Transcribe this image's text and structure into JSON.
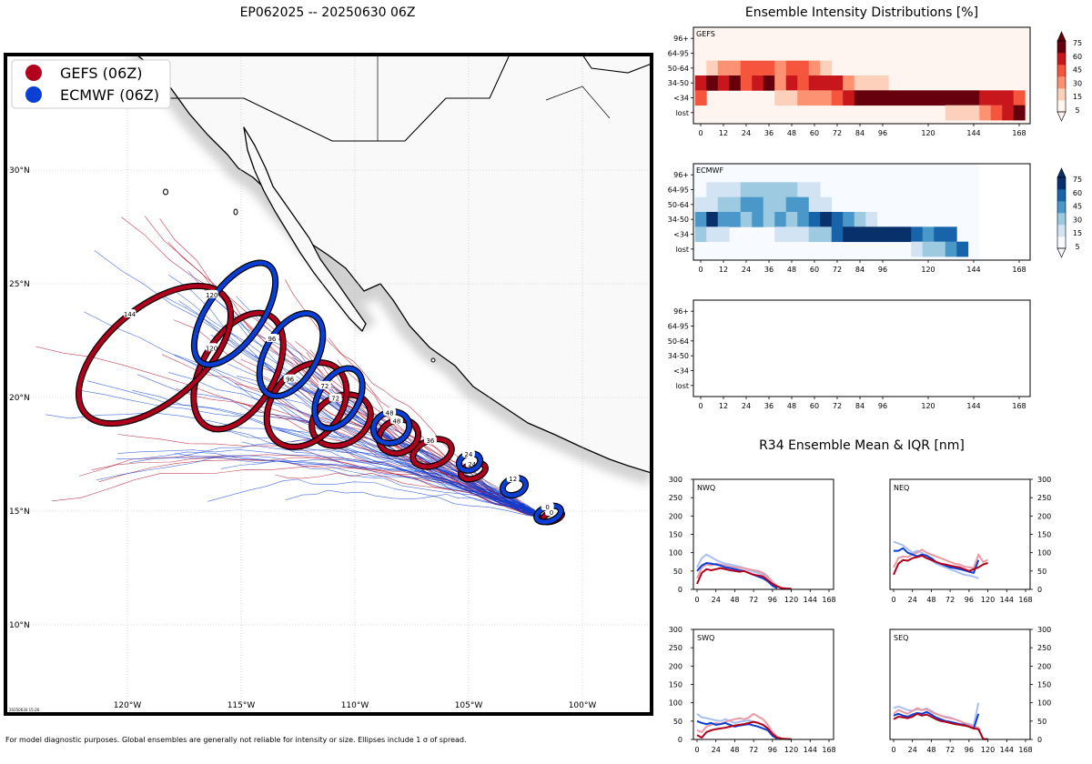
{
  "header": {
    "map_title": "EP062025 -- 20250630 06Z",
    "intensity_title": "Ensemble Intensity Distributions [%]",
    "r34_title": "R34 Ensemble Mean & IQR [nm]",
    "footer": "For model diagnostic purposes. Global ensembles are generally not reliable for intensity or size. Ellipses include 1 σ of spread.",
    "stamp": "20250630 15:26"
  },
  "legend": {
    "items": [
      {
        "label": "GEFS (06Z)",
        "color": "#b0001e"
      },
      {
        "label": "ECMWF (06Z)",
        "color": "#0a3fd6"
      }
    ]
  },
  "map": {
    "lon_labels": [
      "120°W",
      "115°W",
      "110°W",
      "105°W",
      "100°W"
    ],
    "lat_labels": [
      "30°N",
      "25°N",
      "20°N",
      "15°N",
      "10°N"
    ],
    "gefs_color": "#b0001e",
    "ecmwf_color": "#0a3fd6"
  },
  "chart_data": [
    {
      "type": "heatmap",
      "panel": "GEFS",
      "ylabels": [
        "96+",
        "64-95",
        "50-64",
        "34-50",
        "<34",
        "lost"
      ],
      "xticks": [
        "0",
        "12",
        "24",
        "36",
        "48",
        "60",
        "72",
        "84",
        "96",
        "120",
        "144",
        "168"
      ],
      "colorbar": {
        "ticks": [
          "75",
          "60",
          "45",
          "30",
          "15",
          "5"
        ],
        "colors": [
          "#fff5f0",
          "#fdd0bc",
          "#fc9272",
          "#f5553d",
          "#c8171c",
          "#67000d"
        ]
      },
      "rows": [
        [
          0,
          0,
          0,
          0,
          0,
          0,
          0,
          0,
          0,
          0,
          0,
          0,
          0,
          0,
          0,
          0,
          0,
          0,
          0,
          0,
          0,
          0,
          0,
          0,
          0,
          0,
          0,
          0,
          0
        ],
        [
          0,
          0,
          0,
          0,
          0,
          0,
          0,
          0,
          0,
          0,
          0,
          0,
          0,
          0,
          0,
          0,
          0,
          0,
          0,
          0,
          0,
          0,
          0,
          0,
          0,
          0,
          0,
          0,
          0
        ],
        [
          0,
          1,
          2,
          2,
          3,
          3,
          3,
          2,
          3,
          3,
          2,
          1,
          0,
          0,
          0,
          0,
          0,
          0,
          0,
          0,
          0,
          0,
          0,
          0,
          0,
          0,
          0,
          0,
          0
        ],
        [
          4,
          5,
          4,
          5,
          3,
          4,
          5,
          2,
          4,
          3,
          4,
          4,
          4,
          2,
          1,
          1,
          1,
          0,
          0,
          0,
          0,
          0,
          0,
          0,
          0,
          0,
          0,
          0,
          0
        ],
        [
          3,
          0,
          0,
          0,
          0,
          0,
          0,
          1,
          1,
          2,
          2,
          2,
          3,
          4,
          5,
          5,
          5,
          5,
          5,
          5,
          5,
          5,
          5,
          5,
          5,
          4,
          4,
          4,
          3
        ],
        [
          0,
          0,
          0,
          0,
          0,
          0,
          0,
          0,
          0,
          0,
          0,
          0,
          0,
          0,
          0,
          0,
          0,
          0,
          0,
          0,
          0,
          0,
          1,
          1,
          1,
          2,
          3,
          4,
          5
        ]
      ]
    },
    {
      "type": "heatmap",
      "panel": "ECMWF",
      "ylabels": [
        "96+",
        "64-95",
        "50-64",
        "34-50",
        "<34",
        "lost"
      ],
      "xticks": [
        "0",
        "12",
        "24",
        "36",
        "48",
        "60",
        "72",
        "84",
        "96",
        "120",
        "144",
        "168"
      ],
      "colorbar": {
        "ticks": [
          "75",
          "60",
          "45",
          "30",
          "15",
          "5"
        ],
        "colors": [
          "#f7fbff",
          "#d2e3f3",
          "#9ecae1",
          "#4a98c9",
          "#1764ab",
          "#08306b"
        ]
      },
      "rows": [
        [
          0,
          0,
          0,
          0,
          0,
          0,
          0,
          0,
          0,
          0,
          0,
          0,
          0,
          0,
          0,
          0,
          0,
          0,
          0,
          0,
          0,
          0,
          0,
          0,
          0
        ],
        [
          0,
          1,
          1,
          1,
          2,
          2,
          2,
          2,
          2,
          1,
          1,
          0,
          0,
          0,
          0,
          0,
          0,
          0,
          0,
          0,
          0,
          0,
          0,
          0,
          0
        ],
        [
          1,
          1,
          2,
          2,
          3,
          3,
          2,
          2,
          3,
          3,
          1,
          1,
          0,
          0,
          0,
          0,
          0,
          0,
          0,
          0,
          0,
          0,
          0,
          0,
          0
        ],
        [
          3,
          5,
          3,
          3,
          2,
          3,
          2,
          3,
          2,
          3,
          4,
          5,
          4,
          3,
          2,
          1,
          0,
          0,
          0,
          0,
          0,
          0,
          0,
          0,
          0
        ],
        [
          2,
          1,
          1,
          0,
          0,
          0,
          0,
          1,
          1,
          1,
          2,
          2,
          4,
          5,
          5,
          5,
          5,
          5,
          5,
          4,
          3,
          4,
          4,
          0,
          0
        ],
        [
          0,
          0,
          0,
          0,
          0,
          0,
          0,
          0,
          0,
          0,
          0,
          0,
          0,
          0,
          0,
          0,
          0,
          0,
          0,
          1,
          2,
          2,
          3,
          4,
          0
        ]
      ]
    },
    {
      "type": "heatmap",
      "panel": "",
      "ylabels": [
        "96+",
        "64-95",
        "50-64",
        "34-50",
        "<34",
        "lost"
      ],
      "xticks": [
        "0",
        "12",
        "24",
        "36",
        "48",
        "60",
        "72",
        "84",
        "96",
        "120",
        "144",
        "168"
      ],
      "rows": []
    },
    {
      "type": "line",
      "panel": "NWQ",
      "x": [
        0,
        6,
        12,
        18,
        24,
        30,
        36,
        42,
        48,
        54,
        60,
        66,
        72,
        78,
        84,
        90,
        96,
        102,
        108,
        114,
        120
      ],
      "xticks": [
        "0",
        "24",
        "48",
        "72",
        "96",
        "120",
        "144",
        "168"
      ],
      "yticks": [
        "0",
        "50",
        "100",
        "150",
        "200",
        "250",
        "300"
      ],
      "ylim": [
        0,
        300
      ],
      "series": [
        {
          "color": "#b0001e",
          "values": [
            15,
            45,
            55,
            52,
            55,
            58,
            55,
            52,
            50,
            48,
            50,
            45,
            40,
            38,
            35,
            25,
            15,
            8,
            3,
            2,
            2
          ]
        },
        {
          "color": "#0a3fd6",
          "values": [
            50,
            65,
            72,
            70,
            68,
            65,
            60,
            58,
            55,
            52,
            50,
            45,
            40,
            35,
            30,
            22,
            10,
            3,
            null,
            null,
            null
          ]
        },
        {
          "color": "#ea9aa4",
          "values": [
            30,
            60,
            68,
            65,
            70,
            68,
            65,
            62,
            60,
            58,
            58,
            55,
            52,
            50,
            45,
            35,
            20,
            10,
            5,
            3,
            2
          ]
        },
        {
          "color": "#a9bff3",
          "values": [
            60,
            85,
            95,
            88,
            80,
            75,
            70,
            68,
            65,
            62,
            58,
            52,
            48,
            45,
            40,
            30,
            18,
            8,
            null,
            null,
            null
          ]
        }
      ]
    },
    {
      "type": "line",
      "panel": "NEQ",
      "x": [
        0,
        6,
        12,
        18,
        24,
        30,
        36,
        42,
        48,
        54,
        60,
        66,
        72,
        78,
        84,
        90,
        96,
        102,
        108,
        114,
        120
      ],
      "xticks": [
        "0",
        "24",
        "48",
        "72",
        "96",
        "120",
        "144",
        "168"
      ],
      "yticks": [
        "0",
        "50",
        "100",
        "150",
        "200",
        "250",
        "300"
      ],
      "ylim": [
        0,
        300
      ],
      "series": [
        {
          "color": "#b0001e",
          "values": [
            40,
            70,
            80,
            78,
            85,
            88,
            92,
            85,
            80,
            75,
            70,
            68,
            65,
            62,
            60,
            55,
            50,
            55,
            60,
            68,
            72
          ]
        },
        {
          "color": "#0a3fd6",
          "values": [
            105,
            105,
            112,
            100,
            95,
            90,
            95,
            92,
            85,
            75,
            70,
            65,
            60,
            58,
            55,
            52,
            48,
            45,
            80,
            null,
            null
          ]
        },
        {
          "color": "#ea9aa4",
          "values": [
            60,
            85,
            90,
            88,
            95,
            100,
            108,
            100,
            95,
            90,
            85,
            80,
            75,
            70,
            68,
            62,
            60,
            58,
            95,
            75,
            80
          ]
        },
        {
          "color": "#a9bff3",
          "values": [
            130,
            125,
            120,
            110,
            100,
            105,
            100,
            90,
            80,
            70,
            65,
            60,
            55,
            50,
            45,
            40,
            38,
            35,
            30,
            null,
            null
          ]
        }
      ]
    },
    {
      "type": "line",
      "panel": "SWQ",
      "x": [
        0,
        6,
        12,
        18,
        24,
        30,
        36,
        42,
        48,
        54,
        60,
        66,
        72,
        78,
        84,
        90,
        96,
        102,
        108,
        114,
        120
      ],
      "xticks": [
        "0",
        "24",
        "48",
        "72",
        "96",
        "120",
        "144",
        "168"
      ],
      "yticks": [
        "0",
        "50",
        "100",
        "150",
        "200",
        "250",
        "300"
      ],
      "ylim": [
        0,
        300
      ],
      "series": [
        {
          "color": "#b0001e",
          "values": [
            12,
            5,
            20,
            25,
            28,
            30,
            32,
            35,
            38,
            40,
            42,
            45,
            48,
            45,
            40,
            30,
            15,
            5,
            2,
            1,
            1
          ]
        },
        {
          "color": "#0a3fd6",
          "values": [
            50,
            45,
            42,
            45,
            40,
            42,
            45,
            40,
            35,
            38,
            40,
            42,
            38,
            35,
            30,
            25,
            10,
            2,
            null,
            null,
            null
          ]
        },
        {
          "color": "#ea9aa4",
          "values": [
            25,
            20,
            35,
            40,
            45,
            42,
            48,
            52,
            55,
            58,
            55,
            60,
            70,
            62,
            55,
            40,
            20,
            8,
            3,
            2,
            1
          ]
        },
        {
          "color": "#a9bff3",
          "values": [
            70,
            60,
            58,
            55,
            52,
            50,
            55,
            50,
            45,
            48,
            50,
            52,
            48,
            45,
            40,
            32,
            15,
            5,
            null,
            null,
            null
          ]
        }
      ]
    },
    {
      "type": "line",
      "panel": "SEQ",
      "x": [
        0,
        6,
        12,
        18,
        24,
        30,
        36,
        42,
        48,
        54,
        60,
        66,
        72,
        78,
        84,
        90,
        96,
        102,
        108,
        114,
        120
      ],
      "xticks": [
        "0",
        "24",
        "48",
        "72",
        "96",
        "120",
        "144",
        "168"
      ],
      "yticks": [
        "0",
        "50",
        "100",
        "150",
        "200",
        "250",
        "300"
      ],
      "ylim": [
        0,
        300
      ],
      "series": [
        {
          "color": "#b0001e",
          "values": [
            55,
            62,
            60,
            58,
            62,
            70,
            65,
            68,
            62,
            55,
            50,
            48,
            45,
            42,
            40,
            38,
            35,
            30,
            28,
            1,
            1
          ]
        },
        {
          "color": "#0a3fd6",
          "values": [
            65,
            70,
            65,
            62,
            68,
            72,
            70,
            75,
            68,
            60,
            55,
            50,
            48,
            45,
            42,
            40,
            35,
            30,
            70,
            null,
            null
          ]
        },
        {
          "color": "#ea9aa4",
          "values": [
            70,
            80,
            75,
            70,
            78,
            85,
            80,
            82,
            75,
            70,
            65,
            60,
            58,
            55,
            50,
            45,
            40,
            35,
            32,
            1,
            1
          ]
        },
        {
          "color": "#a9bff3",
          "values": [
            85,
            90,
            85,
            80,
            78,
            82,
            80,
            85,
            78,
            70,
            65,
            62,
            60,
            55,
            50,
            45,
            42,
            38,
            100,
            null,
            null
          ]
        }
      ]
    }
  ]
}
